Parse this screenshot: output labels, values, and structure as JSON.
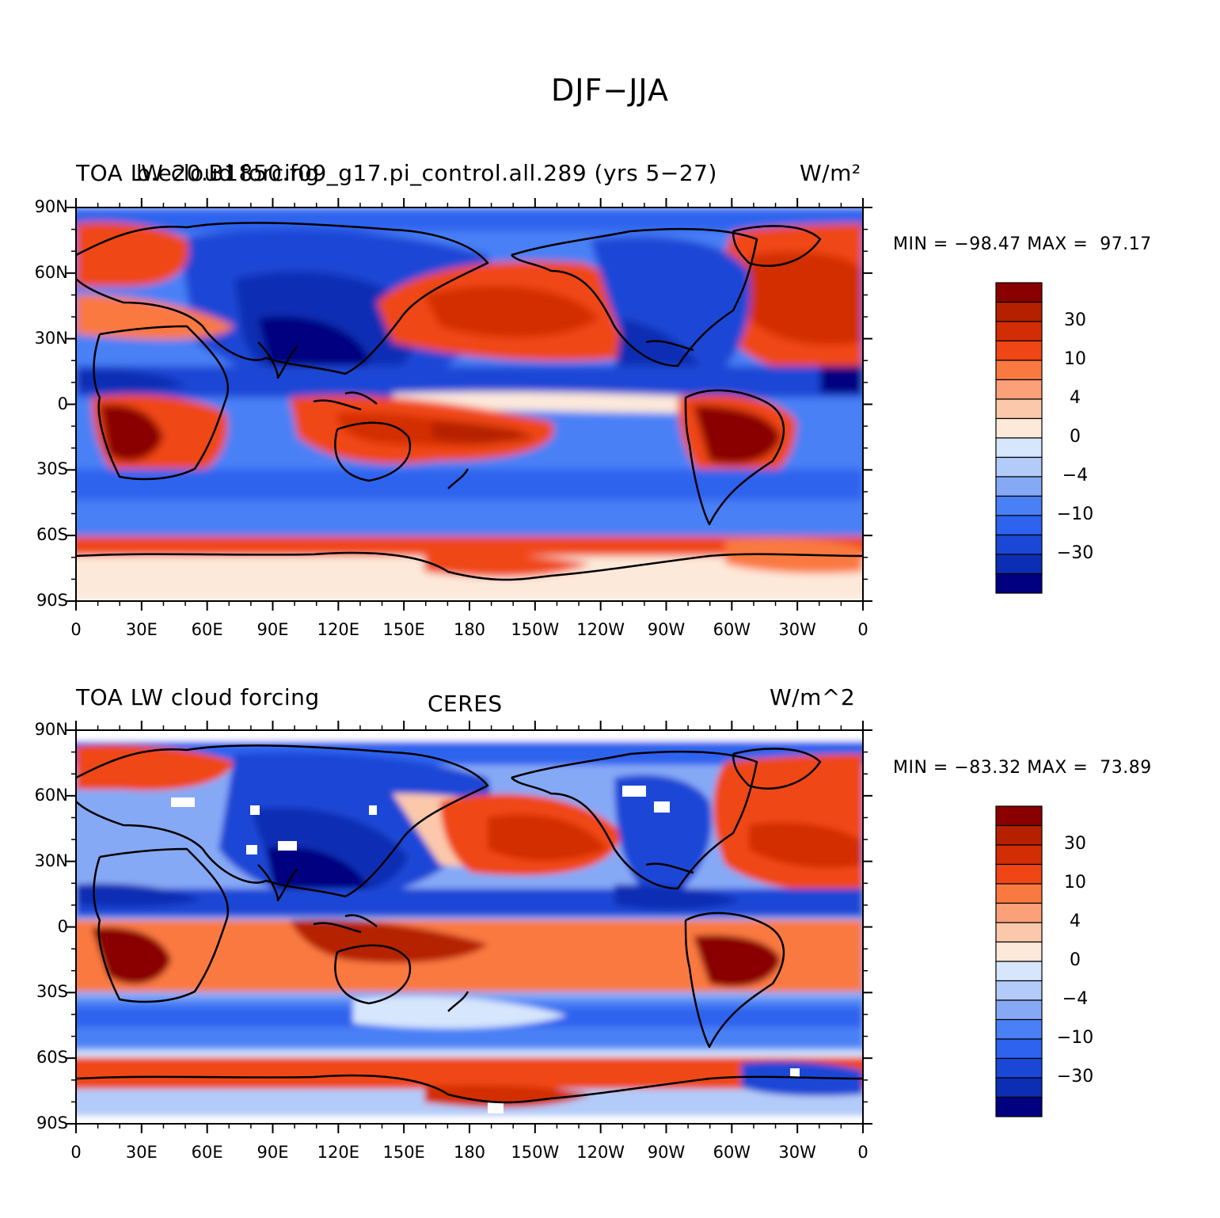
{
  "title": "DJF−JJA",
  "colors": {
    "levels": [
      "#000080",
      "#0c2eb4",
      "#1a47d6",
      "#2d63ee",
      "#4a80f6",
      "#86a9f6",
      "#b3cbf9",
      "#d6e6fc",
      "#fde9da",
      "#fcc8ac",
      "#fca07a",
      "#fa7940",
      "#f04616",
      "#d32d05",
      "#b52100",
      "#8a0000"
    ],
    "coast": "#000000"
  },
  "lat_labels": [
    "90N",
    "60N",
    "30N",
    "0",
    "30S",
    "60S",
    "90S"
  ],
  "lon_labels": [
    "0",
    "30E",
    "60E",
    "90E",
    "120E",
    "150E",
    "180",
    "150W",
    "120W",
    "90W",
    "60W",
    "30W",
    "0"
  ],
  "colorbar_labels": [
    "30",
    "10",
    "4",
    "0",
    "−4",
    "−10",
    "−30"
  ],
  "panels": [
    {
      "left_title": "TOA LW cloud forcing",
      "center_title": "b.e20.B1850.f09_g17.pi_control.all.289 (yrs 5−27)",
      "right_title": "W/m²",
      "min_max": "MIN = −98.47 MAX =  97.17"
    },
    {
      "left_title": "TOA LW cloud forcing",
      "center_title": "CERES",
      "right_title": "W/m^2",
      "min_max": "MIN = −83.32 MAX =  73.89"
    }
  ]
}
